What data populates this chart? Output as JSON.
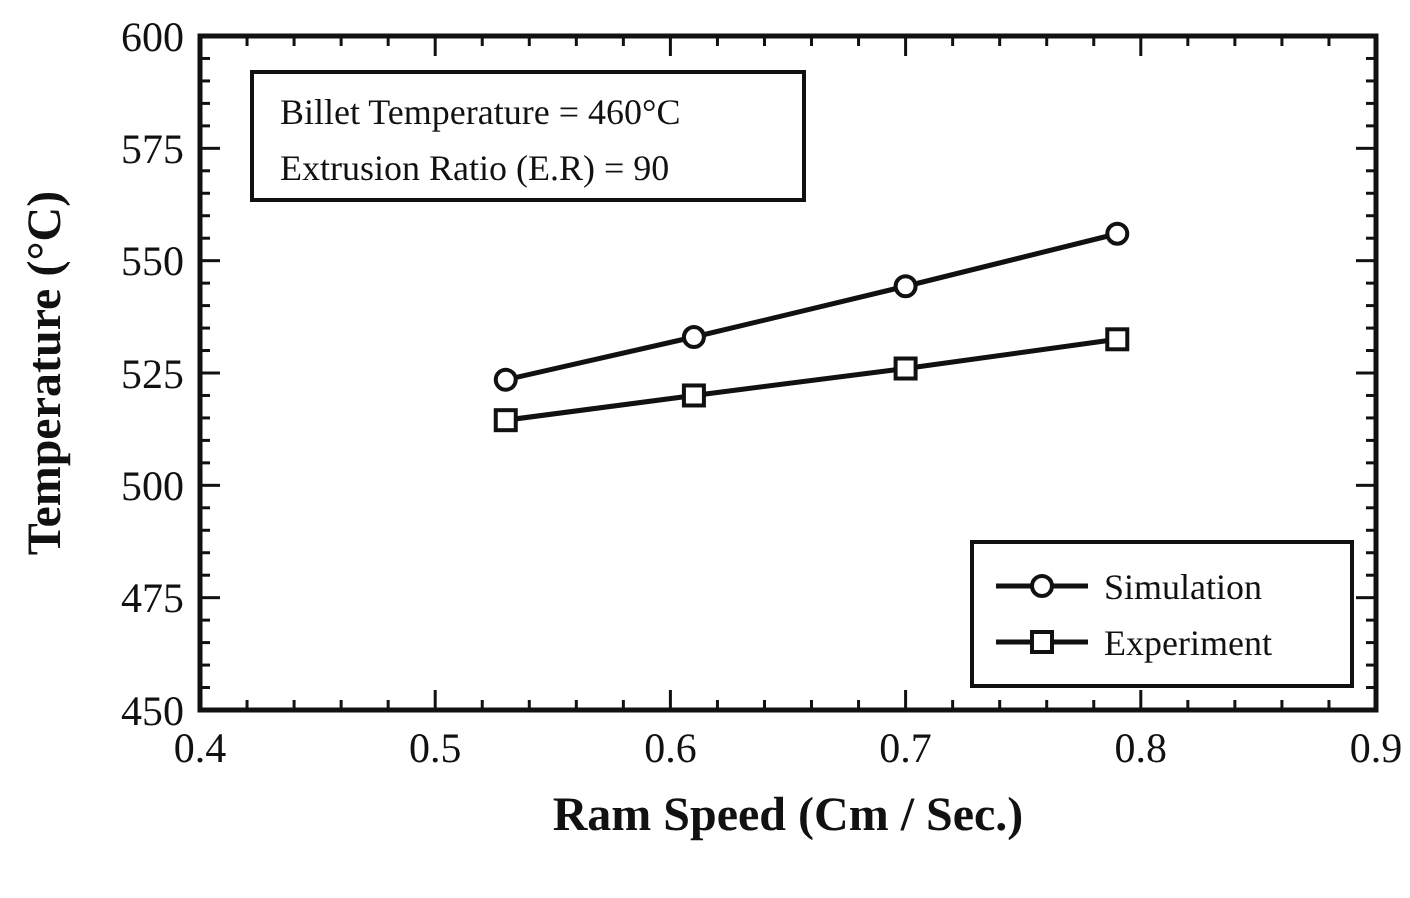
{
  "chart_data": {
    "type": "line",
    "xlabel": "Ram Speed (Cm / Sec.)",
    "ylabel": "Temperature (°C)",
    "annotations": [
      "Billet Temperature = 460°C",
      "Extrusion Ratio (E.R) = 90"
    ],
    "x": [
      0.53,
      0.61,
      0.7,
      0.79
    ],
    "series": [
      {
        "name": "Simulation",
        "color": "#111111",
        "marker": "circle",
        "values": [
          523.5,
          533,
          544.3,
          556
        ]
      },
      {
        "name": "Experiment",
        "color": "#111111",
        "marker": "square",
        "values": [
          514.5,
          520,
          526,
          532.5
        ]
      }
    ],
    "xlim": [
      0.4,
      0.9
    ],
    "xticks": [
      0.4,
      {
        "value": 0.42,
        "label": null
      },
      {
        "value": 0.44,
        "label": null
      },
      {
        "value": 0.46,
        "label": null
      },
      {
        "value": 0.48,
        "label": null
      },
      0.5,
      {
        "value": 0.52,
        "label": null
      },
      {
        "value": 0.54,
        "label": null
      },
      {
        "value": 0.56,
        "label": null
      },
      {
        "value": 0.58,
        "label": null
      },
      0.6,
      {
        "value": 0.62,
        "label": null
      },
      {
        "value": 0.64,
        "label": null
      },
      {
        "value": 0.66,
        "label": null
      },
      {
        "value": 0.68,
        "label": null
      },
      0.7,
      {
        "value": 0.72,
        "label": null
      },
      {
        "value": 0.74,
        "label": null
      },
      {
        "value": 0.76,
        "label": null
      },
      {
        "value": 0.78,
        "label": null
      },
      0.8,
      {
        "value": 0.82,
        "label": null
      },
      {
        "value": 0.84,
        "label": null
      },
      {
        "value": 0.86,
        "label": null
      },
      {
        "value": 0.88,
        "label": null
      },
      0.9
    ],
    "ylim": [
      450,
      600
    ],
    "yticks": [
      450,
      {
        "value": 455,
        "label": null
      },
      {
        "value": 460,
        "label": null
      },
      {
        "value": 465,
        "label": null
      },
      {
        "value": 470,
        "label": null
      },
      475,
      {
        "value": 480,
        "label": null
      },
      {
        "value": 485,
        "label": null
      },
      {
        "value": 490,
        "label": null
      },
      {
        "value": 495,
        "label": null
      },
      500,
      {
        "value": 505,
        "label": null
      },
      {
        "value": 510,
        "label": null
      },
      {
        "value": 515,
        "label": null
      },
      {
        "value": 520,
        "label": null
      },
      525,
      {
        "value": 530,
        "label": null
      },
      {
        "value": 535,
        "label": null
      },
      {
        "value": 540,
        "label": null
      },
      {
        "value": 545,
        "label": null
      },
      550,
      {
        "value": 555,
        "label": null
      },
      {
        "value": 560,
        "label": null
      },
      {
        "value": 565,
        "label": null
      },
      {
        "value": 570,
        "label": null
      },
      575,
      {
        "value": 580,
        "label": null
      },
      {
        "value": 585,
        "label": null
      },
      {
        "value": 590,
        "label": null
      },
      {
        "value": 595,
        "label": null
      },
      600
    ],
    "grid": false,
    "legend": "bottom right",
    "line_style": "solid"
  }
}
